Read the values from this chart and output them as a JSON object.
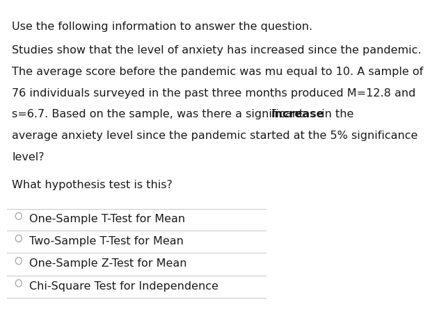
{
  "bg_color": "#ffffff",
  "header_text": "Use the following information to answer the question.",
  "body_line1": "Studies show that the level of anxiety has increased since the pandemic.",
  "body_line2": "The average score before the pandemic was mu equal to 10. A sample of",
  "body_line3": "76 individuals surveyed in the past three months produced M=12.8 and",
  "body_line4_a": "s=6.7. Based on the sample, was there a significant ",
  "body_line4_b": "increase",
  "body_line4_c": " in the",
  "body_line5": "average anxiety level since the pandemic started at the 5% significance",
  "body_line6": "level?",
  "question_text": "What hypothesis test is this?",
  "options": [
    "One-Sample T-Test for Mean",
    "Two-Sample T-Test for Mean",
    "One-Sample Z-Test for Mean",
    "Chi-Square Test for Independence"
  ],
  "font_size_header": 11.5,
  "font_size_body": 11.5,
  "font_size_question": 11.5,
  "font_size_options": 11.5,
  "text_color": "#1a1a1a",
  "line_color": "#cccccc",
  "circle_color": "#aaaaaa"
}
